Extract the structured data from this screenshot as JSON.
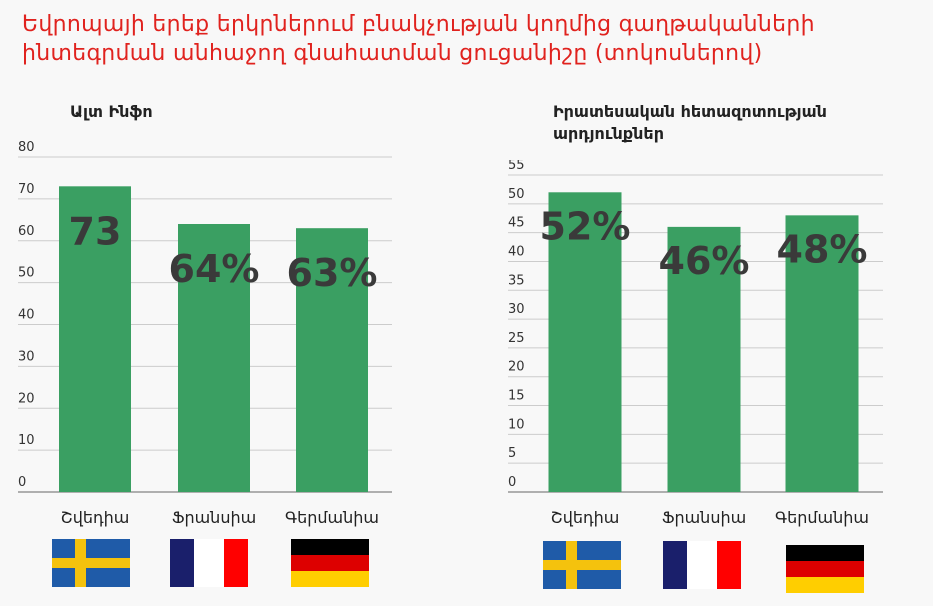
{
  "header": {
    "title_line1": "Եվրոպայի երեք երկրներում բնակչության կողմից գաղթականների",
    "title_line2": "ինտեգրման անհաջող գնահատման ցուցանիշը  (տոկոսներով)"
  },
  "colors": {
    "title": "#e0221e",
    "bar": "#3a9f62",
    "value_label": "#3a3a3a",
    "axis_text": "#333333",
    "grid": "#cccccc"
  },
  "chart_data": [
    {
      "type": "bar",
      "title": "Ալտ Ինֆո",
      "categories": [
        "Շվեդիա",
        "Ֆրանսիա",
        "Գերմանիա"
      ],
      "values": [
        73,
        64,
        63
      ],
      "data_labels": [
        "73",
        "64%",
        "63%"
      ],
      "ylim": [
        0,
        80
      ],
      "yticks": [
        0,
        10,
        20,
        30,
        40,
        50,
        60,
        70,
        80
      ],
      "grid": true,
      "flags": [
        "sweden-flag",
        "france-flag",
        "germany-flag"
      ]
    },
    {
      "type": "bar",
      "title": "Իրատեսական հետազոտության արդյունքներ",
      "title_lines": [
        "Իրատեսական հետազոտության",
        "արդյունքներ"
      ],
      "categories": [
        "Շվեդիա",
        "Ֆրանսիա",
        "Գերմանիա"
      ],
      "values": [
        52,
        46,
        48
      ],
      "data_labels": [
        "52%",
        "46%",
        "48%"
      ],
      "ylim": [
        0,
        55
      ],
      "yticks": [
        0,
        5,
        10,
        15,
        20,
        25,
        30,
        35,
        40,
        45,
        50,
        55
      ],
      "grid": true,
      "flags": [
        "sweden-flag",
        "france-flag",
        "germany-flag"
      ]
    }
  ]
}
